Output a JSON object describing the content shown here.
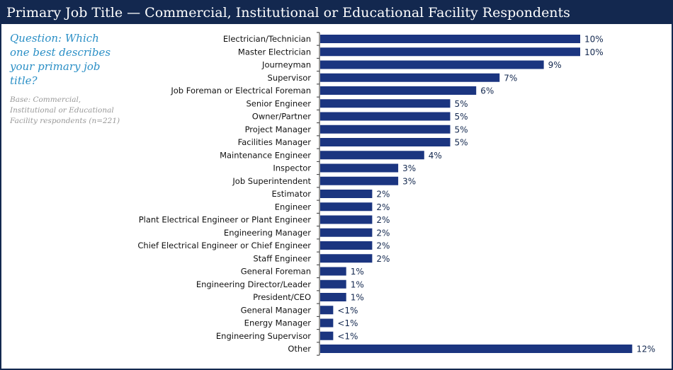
{
  "header": {
    "title": "Primary Job Title — Commercial, Institutional or Educational Facility Respondents"
  },
  "question": {
    "text": "Question: Which one best describes your primary job title?",
    "base": "Base: Commercial, Institutional or Educational Facility respondents (n=221)"
  },
  "colors": {
    "bar": "#1b3580",
    "header": "#13284f",
    "question": "#2a8fc6"
  },
  "chart_data": {
    "type": "bar",
    "orientation": "horizontal",
    "categories": [
      "Electrician/Technician",
      "Master Electrician",
      "Journeyman",
      "Supervisor",
      "Job Foreman or Electrical Foreman",
      "Senior Engineer",
      "Owner/Partner",
      "Project Manager",
      "Facilities Manager",
      "Maintenance Engineer",
      "Inspector",
      "Job Superintendent",
      "Estimator",
      "Engineer",
      "Plant Electrical Engineer or Plant Engineer",
      "Engineering Manager",
      "Chief Electrical Engineer or Chief Engineer",
      "Staff Engineer",
      "General Foreman",
      "Engineering Director/Leader",
      "President/CEO",
      "General Manager",
      "Energy Manager",
      "Engineering Supervisor",
      "Other"
    ],
    "values": [
      10,
      10,
      8.6,
      6.9,
      6,
      5,
      5,
      5,
      5,
      4,
      3,
      3,
      2,
      2,
      2,
      2,
      2,
      2,
      1,
      1,
      1,
      0.5,
      0.5,
      0.5,
      12
    ],
    "data_labels": [
      "10%",
      "10%",
      "9%",
      "7%",
      "6%",
      "5%",
      "5%",
      "5%",
      "5%",
      "4%",
      "3%",
      "3%",
      "2%",
      "2%",
      "2%",
      "2%",
      "2%",
      "2%",
      "1%",
      "1%",
      "1%",
      "<1%",
      "<1%",
      "<1%",
      "12%"
    ],
    "unit": "%",
    "grid": false,
    "legend": "none"
  }
}
